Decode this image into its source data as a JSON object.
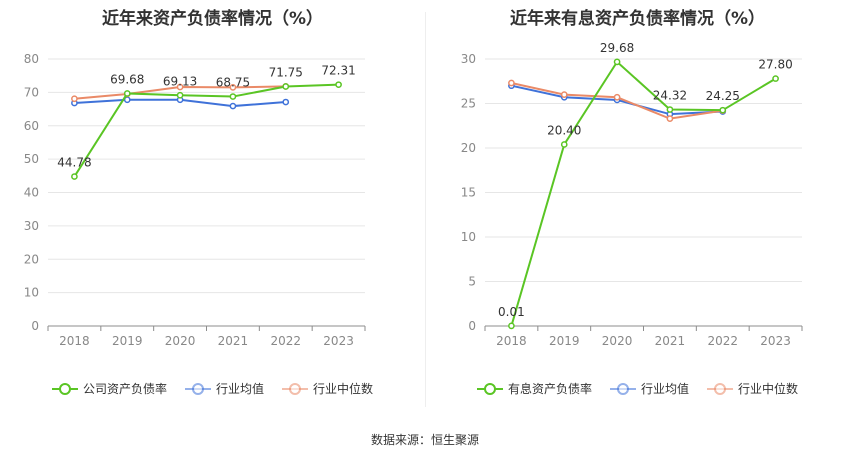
{
  "source_text": "数据来源：恒生聚源",
  "chart_data": [
    {
      "type": "line",
      "title": "近年来资产负债率情况（%）",
      "categories": [
        "2018",
        "2019",
        "2020",
        "2021",
        "2022",
        "2023"
      ],
      "ylim": [
        0,
        80
      ],
      "yticks": [
        0,
        10,
        20,
        30,
        40,
        50,
        60,
        70,
        80
      ],
      "grid": true,
      "legend_position": "bottom",
      "series": [
        {
          "name": "公司资产负债率",
          "color": "#5ac524",
          "values": [
            44.78,
            69.68,
            69.13,
            68.75,
            71.75,
            72.31
          ],
          "labels": [
            "44.78",
            "69.68",
            "69.13",
            "68.75",
            "71.75",
            "72.31"
          ]
        },
        {
          "name": "行业均值",
          "color": "#3f72d9",
          "values": [
            66.8,
            67.8,
            67.8,
            65.9,
            67.1,
            null
          ]
        },
        {
          "name": "行业中位数",
          "color": "#ea8a67",
          "values": [
            68.1,
            69.5,
            71.6,
            71.5,
            71.8,
            null
          ]
        }
      ]
    },
    {
      "type": "line",
      "title": "近年来有息资产负债率情况（%）",
      "categories": [
        "2018",
        "2019",
        "2020",
        "2021",
        "2022",
        "2023"
      ],
      "ylim": [
        0,
        30
      ],
      "yticks": [
        0,
        5,
        10,
        15,
        20,
        25,
        30
      ],
      "grid": true,
      "legend_position": "bottom",
      "series": [
        {
          "name": "有息资产负债率",
          "color": "#5ac524",
          "values": [
            0.01,
            20.4,
            29.68,
            24.32,
            24.25,
            27.8
          ],
          "labels": [
            "0.01",
            "20.40",
            "29.68",
            "24.32",
            "24.25",
            "27.80"
          ]
        },
        {
          "name": "行业均值",
          "color": "#3f72d9",
          "values": [
            27.0,
            25.7,
            25.4,
            23.8,
            24.1,
            null
          ]
        },
        {
          "name": "行业中位数",
          "color": "#ea8a67",
          "values": [
            27.3,
            26.0,
            25.7,
            23.3,
            24.2,
            null
          ]
        }
      ]
    }
  ]
}
